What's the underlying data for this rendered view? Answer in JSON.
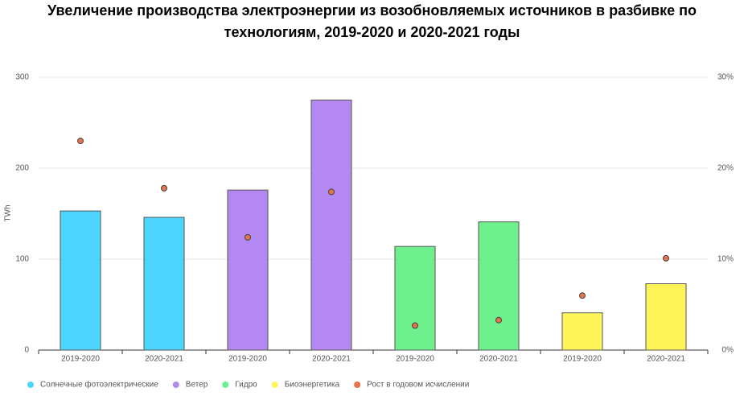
{
  "chart_data": {
    "type": "bar",
    "title": "Увеличение производства электроэнергии из возобновляемых источников в разбивке по технологиям, 2019-2020 и 2020-2021 годы",
    "ylabel": "TWh",
    "categories": [
      "2019-2020",
      "2020-2021",
      "2019-2020",
      "2020-2021",
      "2019-2020",
      "2020-2021",
      "2019-2020",
      "2020-2021"
    ],
    "series": [
      {
        "name": "Солнечные фотоэлектрические",
        "color": "#4dd5ff",
        "values": [
          153,
          146,
          null,
          null,
          null,
          null,
          null,
          null
        ]
      },
      {
        "name": "Ветер",
        "color": "#b388f0",
        "values": [
          null,
          null,
          176,
          275,
          null,
          null,
          null,
          null
        ]
      },
      {
        "name": "Гидро",
        "color": "#6ef08e",
        "values": [
          null,
          null,
          null,
          null,
          114,
          141,
          null,
          null
        ]
      },
      {
        "name": "Биоэнергетика",
        "color": "#fff35a",
        "values": [
          null,
          null,
          null,
          null,
          null,
          null,
          41,
          73
        ]
      },
      {
        "name": "Рост в годовом исчислении",
        "color": "#e8734a",
        "axis": "y2",
        "type": "scatter",
        "values": [
          23.0,
          17.8,
          12.4,
          17.4,
          2.7,
          3.3,
          6.0,
          10.1
        ]
      }
    ],
    "ylim": [
      0,
      300
    ],
    "yticks": [
      0,
      100,
      200,
      300
    ],
    "y2lim": [
      0,
      30
    ],
    "y2ticks": [
      {
        "value": 0,
        "label": "0%"
      },
      {
        "value": 10,
        "label": "10%"
      },
      {
        "value": 20,
        "label": "20%"
      },
      {
        "value": 30,
        "label": "30%"
      }
    ],
    "grid": true
  }
}
